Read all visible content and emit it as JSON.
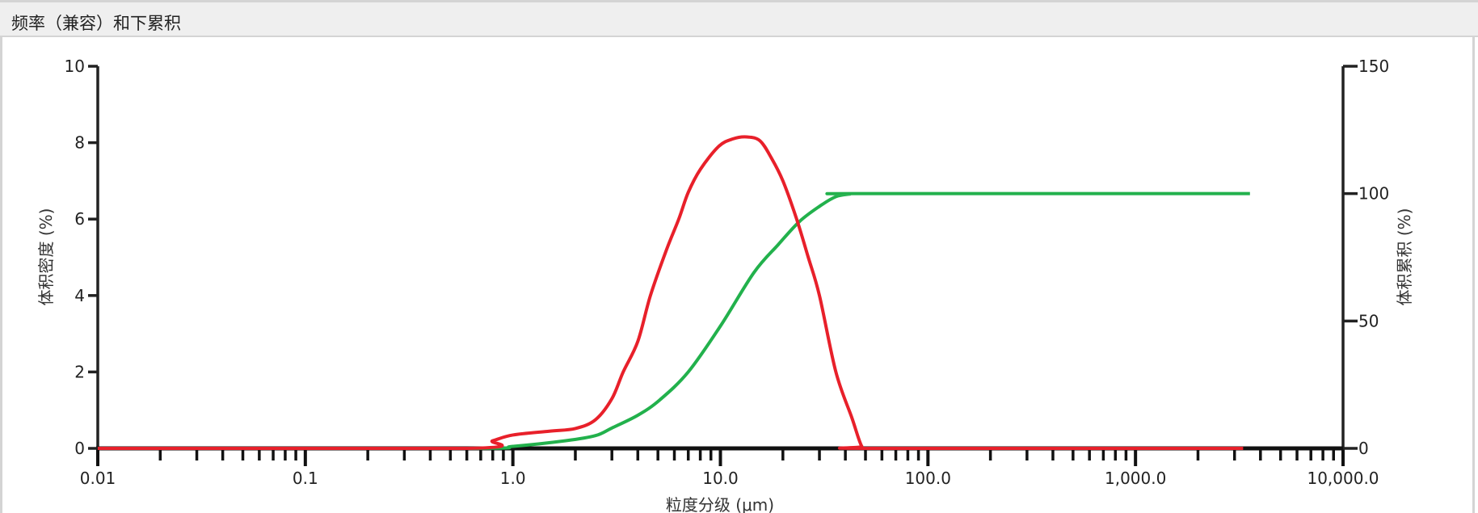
{
  "header": {
    "title": "频率（兼容）和下累积"
  },
  "chart_data": {
    "type": "line",
    "title": "频率（兼容）和下累积",
    "xlabel": "粒度分级 (μm)",
    "ylabel": "体积密度 (%)",
    "y2label": "体积累积 (%)",
    "xscale": "log",
    "xlim": [
      0.01,
      10000
    ],
    "ylim": [
      0,
      10
    ],
    "y2lim": [
      0,
      150
    ],
    "xticks": [
      "0.01",
      "0.1",
      "1.0",
      "10.0",
      "100.0",
      "1,000.0",
      "10,000.0"
    ],
    "yticks": [
      "0",
      "2",
      "4",
      "6",
      "8",
      "10"
    ],
    "y2ticks": [
      "0",
      "50",
      "100",
      "150"
    ],
    "grid": false,
    "series": [
      {
        "axis": "left",
        "color": "#e8202a",
        "x": [
          0.01,
          0.6,
          0.8,
          1.0,
          1.5,
          2.0,
          2.5,
          3.0,
          3.4,
          4.0,
          4.6,
          5.5,
          6.3,
          7.0,
          8.0,
          9.8,
          11.5,
          13.4,
          15.5,
          17.6,
          20,
          23.3,
          26.5,
          30,
          36,
          43,
          48,
          52,
          3300
        ],
        "y": [
          0,
          0,
          0.2,
          0.35,
          0.45,
          0.52,
          0.75,
          1.3,
          2.0,
          2.8,
          4.0,
          5.2,
          6.0,
          6.7,
          7.3,
          7.9,
          8.1,
          8.15,
          8.05,
          7.6,
          7.0,
          6.0,
          5.0,
          4.0,
          2.0,
          0.8,
          0.05,
          0,
          0
        ]
      },
      {
        "axis": "right",
        "color": "#22b14c",
        "x": [
          0.01,
          0.6,
          1.0,
          1.8,
          2.5,
          3.0,
          4.0,
          5.1,
          7.0,
          10.0,
          14.5,
          19,
          24,
          30,
          36,
          42,
          46,
          3560
        ],
        "y": [
          0,
          0,
          0.8,
          3,
          5,
          8,
          13,
          19,
          30,
          48,
          69,
          80,
          89,
          95,
          98.8,
          99.8,
          100,
          100
        ]
      }
    ]
  }
}
